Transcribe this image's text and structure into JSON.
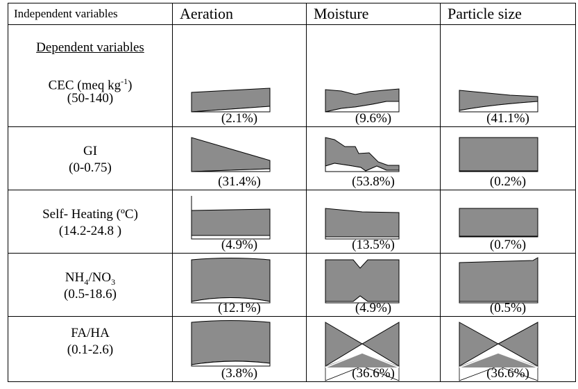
{
  "header": {
    "corner": "Independent variables",
    "columns": [
      "Aeration",
      "Moisture",
      "Particle size"
    ],
    "dependent_heading": "Dependent variables"
  },
  "rows": [
    {
      "name_main": "CEC (meq kg",
      "name_sup": "-1",
      "name_tail": ")",
      "range": "(50-140)",
      "pcts": [
        "(2.1%)",
        "(9.6%)",
        "(41.1%)"
      ]
    },
    {
      "name_main": "GI",
      "range": "(0-0.75)",
      "pcts": [
        "(31.4%)",
        "(53.8%)",
        "(0.2%)"
      ]
    },
    {
      "name_main": "Self- Heating (ºC)",
      "range": "(14.2-24.8 )",
      "pcts": [
        "(4.9%)",
        "(13.5%)",
        "(0.7%)"
      ]
    },
    {
      "name_main": "NH",
      "name_sub1": "4",
      "name_mid": "/NO",
      "name_sub2": "3",
      "range": "(0.5-18.6)",
      "pcts": [
        "(12.1%)",
        "(4.9%)",
        "(0.5%)"
      ]
    },
    {
      "name_main": "FA/HA",
      "range": "(0.1-2.6)",
      "pcts": [
        "(3.8%)",
        "(36.6%)",
        "(36.6%)"
      ]
    }
  ],
  "colors": {
    "fill": "#8c8c8c",
    "line": "#000000"
  }
}
